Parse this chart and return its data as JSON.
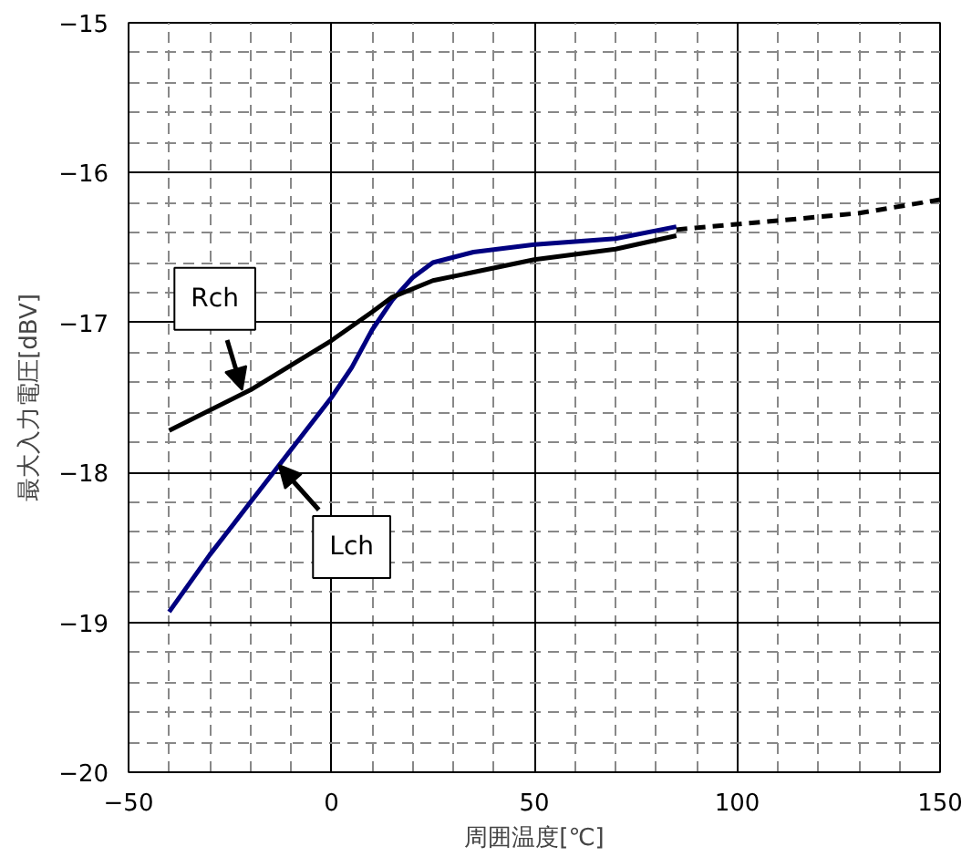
{
  "chart_data": {
    "type": "line",
    "xlabel": "周囲温度[℃]",
    "ylabel": "最大入力電圧[dBV]",
    "xlim": [
      -50,
      150
    ],
    "ylim": [
      -20,
      -15
    ],
    "xticks": [
      -50,
      0,
      50,
      100,
      150
    ],
    "yticks": [
      -20,
      -19,
      -18,
      -17,
      -16,
      -15
    ],
    "grid": true,
    "marker": "none",
    "series": [
      {
        "color": "#000080",
        "x": [
          -40,
          -30,
          -20,
          -10,
          0,
          5,
          10,
          15,
          20,
          25,
          35,
          50,
          70,
          85
        ],
        "values": [
          -18.93,
          -18.55,
          -18.2,
          -17.85,
          -17.5,
          -17.3,
          -17.05,
          -16.85,
          -16.7,
          -16.6,
          -16.53,
          -16.48,
          -16.44,
          -16.36
        ],
        "line_style": "solid"
      },
      {
        "color": "#000000",
        "x": [
          -40,
          -20,
          0,
          10,
          15,
          25,
          50,
          70,
          85
        ],
        "values": [
          -17.72,
          -17.45,
          -17.12,
          -16.93,
          -16.83,
          -16.72,
          -16.58,
          -16.51,
          -16.42
        ],
        "line_style": "solid"
      },
      {
        "color": "#000000",
        "x": [
          85,
          110,
          130,
          150
        ],
        "values": [
          -16.38,
          -16.32,
          -16.27,
          -16.18
        ],
        "line_style": "dashed"
      }
    ],
    "annotations": [
      {
        "text": "Rch",
        "x": -22,
        "y": -17.45
      },
      {
        "text": "Lch",
        "x": -13,
        "y": -17.95
      }
    ]
  }
}
